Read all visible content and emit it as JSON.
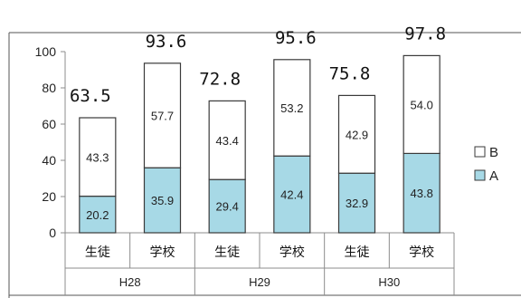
{
  "chart_data": {
    "type": "bar",
    "stacked": true,
    "groups": [
      {
        "label": "H28",
        "categories": [
          "生徒",
          "学校"
        ]
      },
      {
        "label": "H29",
        "categories": [
          "生徒",
          "学校"
        ]
      },
      {
        "label": "H30",
        "categories": [
          "生徒",
          "学校"
        ]
      }
    ],
    "categories": [
      "生徒",
      "学校",
      "生徒",
      "学校",
      "生徒",
      "学校"
    ],
    "series": [
      {
        "name": "A",
        "color": "#a7d9e6",
        "values": [
          20.2,
          35.9,
          29.4,
          42.4,
          32.9,
          43.8
        ]
      },
      {
        "name": "B",
        "color": "#ffffff",
        "values": [
          43.3,
          57.7,
          43.4,
          53.2,
          42.9,
          54.0
        ]
      }
    ],
    "totals": [
      "63.5",
      "93.6",
      "72.8",
      "95.6",
      "75.8",
      "97.8"
    ],
    "data_labels": {
      "A": [
        "20.2",
        "35.9",
        "29.4",
        "42.4",
        "32.9",
        "43.8"
      ],
      "B": [
        "43.3",
        "57.7",
        "43.4",
        "53.2",
        "42.9",
        "54.0"
      ]
    },
    "ylim": [
      0,
      100
    ],
    "yticks": [
      0,
      20,
      40,
      60,
      80,
      100
    ],
    "legend_position": "right",
    "legend_order": [
      "B",
      "A"
    ],
    "grid": false
  }
}
